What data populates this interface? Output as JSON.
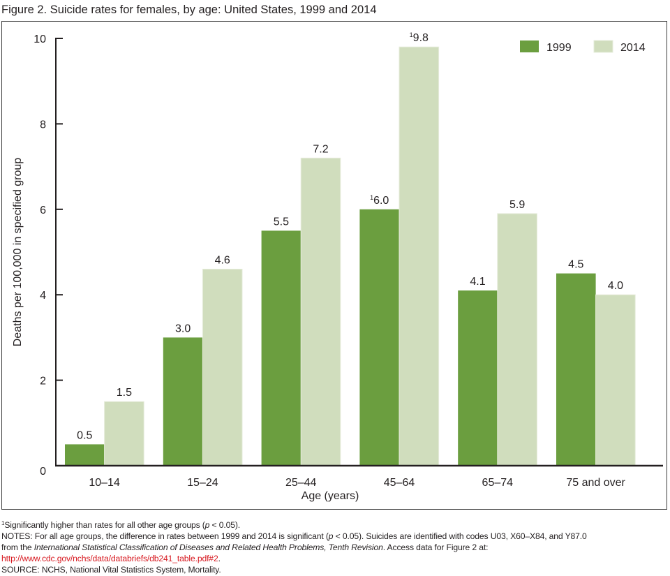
{
  "figure": {
    "title": "Figure 2. Suicide rates for females, by age: United States, 1999 and 2014"
  },
  "colors": {
    "series_1999": "#6b9e3f",
    "series_2014": "#d0ddbd",
    "axis": "#231f20",
    "link": "#d71920"
  },
  "chart_data": {
    "type": "bar",
    "title": "Suicide rates for females, by age: United States, 1999 and 2014",
    "xlabel": "Age (years)",
    "ylabel": "Deaths per 100,000 in specified group",
    "ylim": [
      0,
      10
    ],
    "yticks": [
      0,
      2,
      4,
      6,
      8,
      10
    ],
    "grid": false,
    "legend_position": "top-right",
    "categories": [
      "10–14",
      "15–24",
      "25–44",
      "45–64",
      "65–74",
      "75 and over"
    ],
    "series": [
      {
        "name": "1999",
        "color": "#6b9e3f",
        "values": [
          0.5,
          3.0,
          5.5,
          6.0,
          4.1,
          4.5
        ],
        "labels": [
          "0.5",
          "3.0",
          "5.5",
          "6.0",
          "4.1",
          "4.5"
        ],
        "footnote_marks": [
          "",
          "",
          "",
          "1",
          "",
          ""
        ]
      },
      {
        "name": "2014",
        "color": "#d0ddbd",
        "values": [
          1.5,
          4.6,
          7.2,
          9.8,
          5.9,
          4.0
        ],
        "labels": [
          "1.5",
          "4.6",
          "7.2",
          "9.8",
          "5.9",
          "4.0"
        ],
        "footnote_marks": [
          "",
          "",
          "",
          "1",
          "",
          ""
        ]
      }
    ]
  },
  "footnotes": {
    "significance_mark": "1",
    "significance_text": "Significantly higher than rates for all other age groups (",
    "significance_p": "p",
    "significance_tail": " < 0.05).",
    "notes_1a": "NOTES: For all age groups, the difference in rates between 1999 and 2014 is significant (",
    "notes_1p": "p",
    "notes_1b": " < 0.05). Suicides are identified with codes U03, X60–X84, and Y87.0",
    "notes_2a": "from the ",
    "notes_2i": "International Statistical Classification of Diseases and Related Health Problems, Tenth Revision",
    "notes_2b": ". Access data for Figure 2 at:",
    "link": "http://www.cdc.gov/nchs/data/databriefs/db241_table.pdf#2",
    "link_tail": ".",
    "source": "SOURCE: NCHS, National Vital Statistics System, Mortality."
  }
}
